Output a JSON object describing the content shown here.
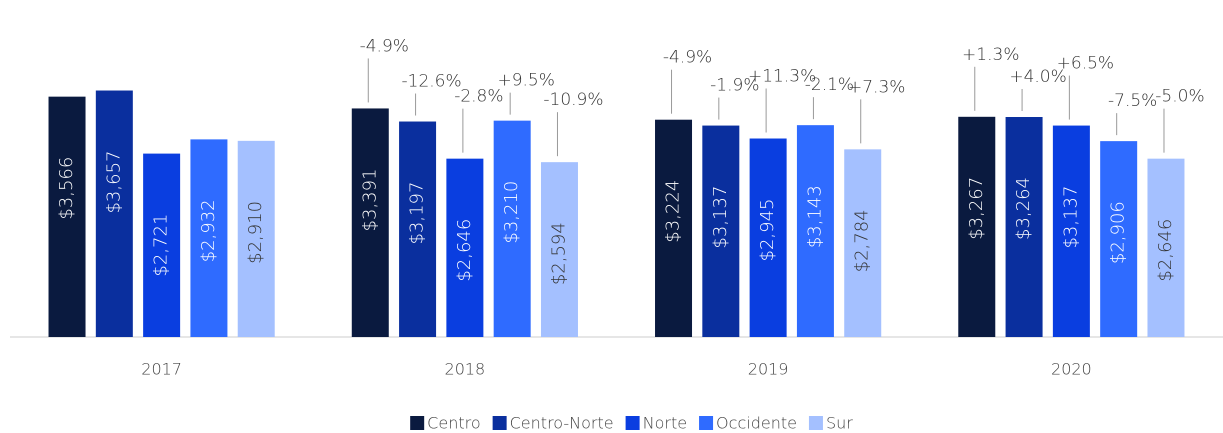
{
  "chart_data": {
    "type": "bar",
    "categories": [
      "2017",
      "2018",
      "2019",
      "2020"
    ],
    "ylim": [
      0,
      5000
    ],
    "series": [
      {
        "name": "Centro",
        "color": "#0a1a3f",
        "values": [
          3566,
          3391,
          3224,
          3267
        ],
        "value_labels": [
          "$3,566",
          "$3,391",
          "$3,224",
          "$3,267"
        ],
        "change_labels": [
          null,
          "-4.9%",
          "-4.9%",
          "+1.3%"
        ]
      },
      {
        "name": "Centro-Norte",
        "color": "#0a2f9e",
        "values": [
          3657,
          3197,
          3137,
          3264
        ],
        "value_labels": [
          "$3,657",
          "$3,197",
          "$3,137",
          "$3,264"
        ],
        "change_labels": [
          null,
          "-12.6%",
          "-1.9%",
          "+4.0%"
        ]
      },
      {
        "name": "Norte",
        "color": "#0a3ee0",
        "values": [
          2721,
          2646,
          2945,
          3137
        ],
        "value_labels": [
          "$2,721",
          "$2,646",
          "$2,945",
          "$3,137"
        ],
        "change_labels": [
          null,
          "-2.8%",
          "+11.3%",
          "+6.5%"
        ]
      },
      {
        "name": "Occidente",
        "color": "#2f6bff",
        "values": [
          2932,
          3210,
          3143,
          2906
        ],
        "value_labels": [
          "$2,932",
          "$3,210",
          "$3,143",
          "$2,906"
        ],
        "change_labels": [
          null,
          "+9.5%",
          "-2.1%",
          "-7.5%"
        ]
      },
      {
        "name": "Sur",
        "color": "#a4c0ff",
        "values": [
          2910,
          2594,
          2784,
          2646
        ],
        "value_labels": [
          "$2,910",
          "$2,594",
          "$2,784",
          "$2,646"
        ],
        "change_labels": [
          null,
          "-10.9%",
          "+7.3%",
          "-5.0%"
        ]
      }
    ]
  }
}
